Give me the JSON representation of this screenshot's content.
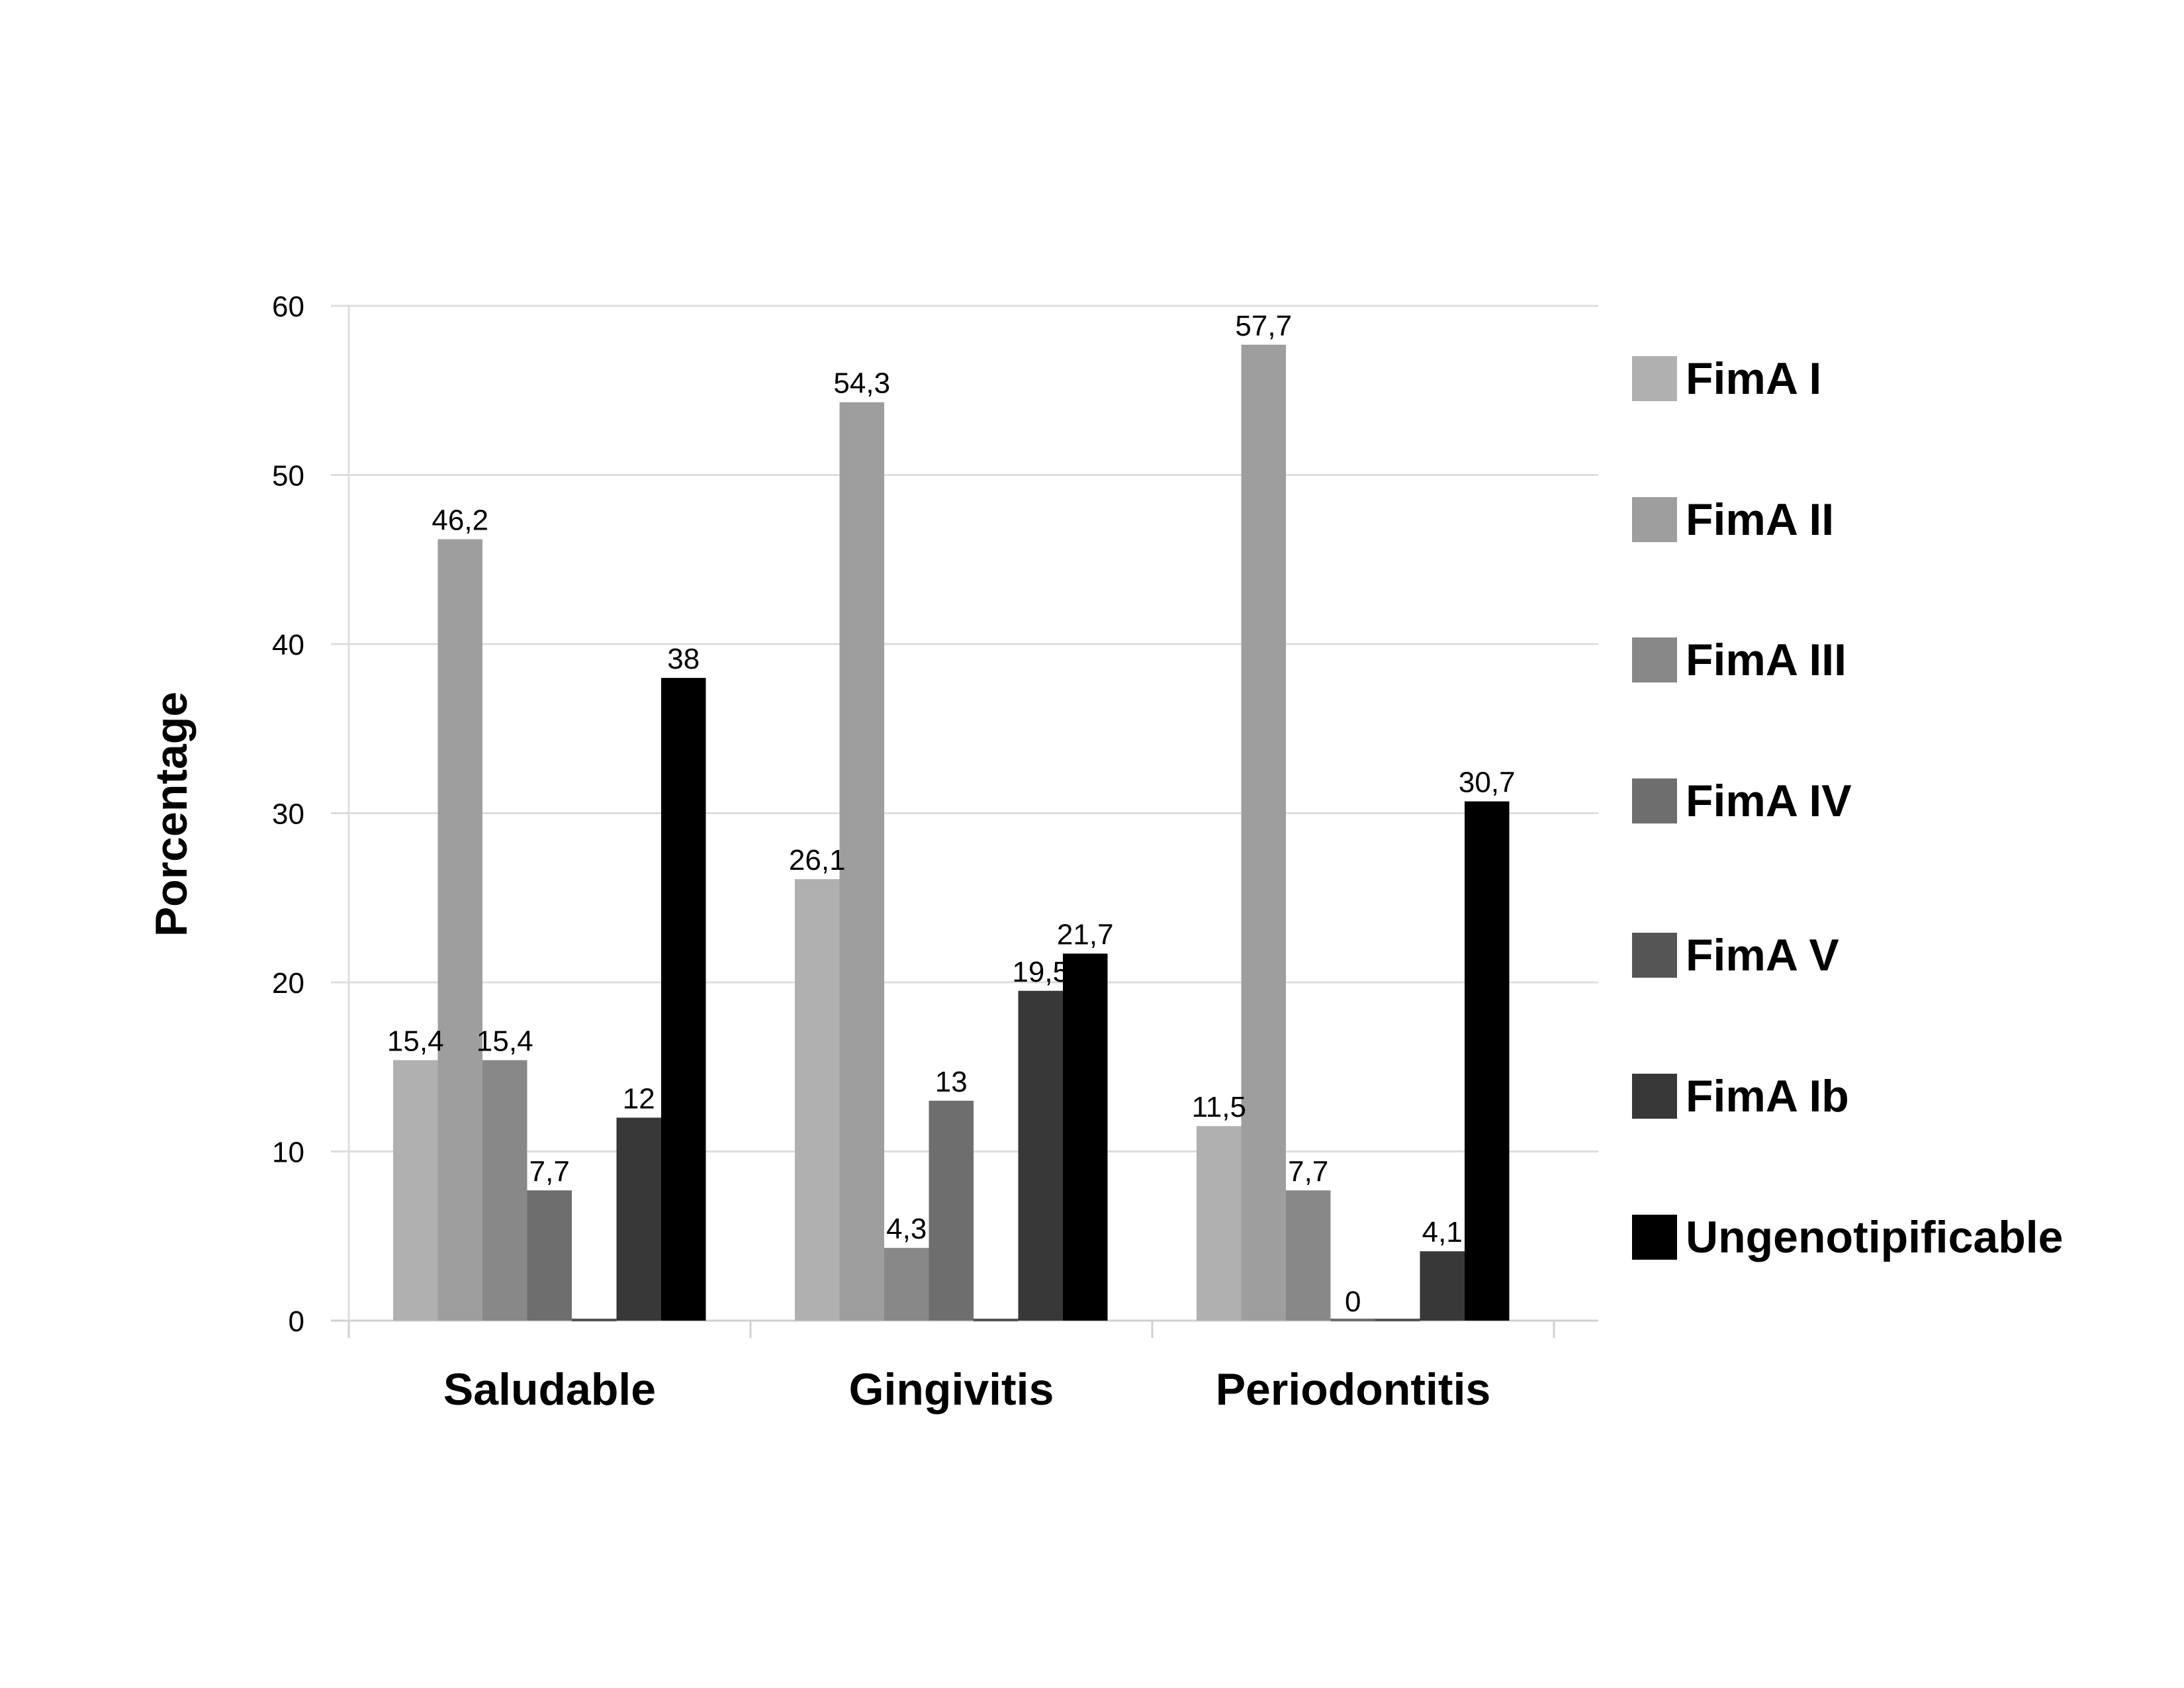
{
  "chart_data": {
    "type": "bar",
    "title": "",
    "xlabel": "",
    "ylabel": "Porcentage",
    "ylim": [
      0,
      60
    ],
    "yticks": [
      0,
      10,
      20,
      30,
      40,
      50,
      60
    ],
    "grid": true,
    "legend_position": "right",
    "categories": [
      "Saludable",
      "Gingivitis",
      "Periodontitis"
    ],
    "series": [
      {
        "name": "FimA I",
        "color": "#b0b0b0",
        "values": [
          15.4,
          26.1,
          11.5
        ],
        "labels": [
          "15,4",
          "26,1",
          "11,5"
        ]
      },
      {
        "name": "FimA II",
        "color": "#9e9e9e",
        "values": [
          46.2,
          54.3,
          57.7
        ],
        "labels": [
          "46,2",
          "54,3",
          "57,7"
        ]
      },
      {
        "name": "FimA III",
        "color": "#888888",
        "values": [
          15.4,
          4.3,
          7.7
        ],
        "labels": [
          "15,4",
          "4,3",
          "7,7"
        ]
      },
      {
        "name": "FimA IV",
        "color": "#6e6e6e",
        "values": [
          7.7,
          13,
          0
        ],
        "labels": [
          "7,7",
          "13",
          "0"
        ]
      },
      {
        "name": "FimA V",
        "color": "#555555",
        "values": [
          0,
          0,
          0
        ],
        "labels": [
          "",
          "",
          ""
        ]
      },
      {
        "name": "FimA Ib",
        "color": "#383838",
        "values": [
          12,
          19.5,
          4.1
        ],
        "labels": [
          "12",
          "19,5",
          "4,1"
        ]
      },
      {
        "name": "Ungenotipificable",
        "color": "#000000",
        "values": [
          38,
          21.7,
          30.7
        ],
        "labels": [
          "38",
          "21,7",
          "30,7"
        ]
      }
    ]
  }
}
